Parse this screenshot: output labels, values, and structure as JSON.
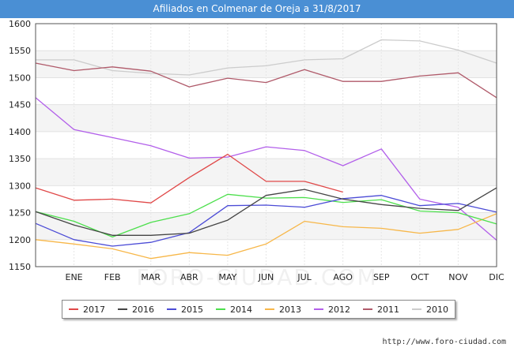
{
  "chart_data": {
    "type": "line",
    "title": "Afiliados en Colmenar de Oreja a 31/8/2017",
    "xlabel": "",
    "ylabel": "",
    "ylim": [
      1150,
      1600
    ],
    "yticks": [
      1150,
      1200,
      1250,
      1300,
      1350,
      1400,
      1450,
      1500,
      1550,
      1600
    ],
    "categories": [
      "",
      "ENE",
      "FEB",
      "MAR",
      "ABR",
      "MAY",
      "JUN",
      "JUL",
      "AGO",
      "SEP",
      "OCT",
      "NOV",
      "DIC"
    ],
    "series": [
      {
        "name": "2010",
        "color": "#cccccc",
        "values": [
          1533,
          1533,
          1513,
          1508,
          1505,
          1518,
          1522,
          1533,
          1535,
          1570,
          1568,
          1551,
          1527
        ]
      },
      {
        "name": "2011",
        "color": "#b05a6a",
        "values": [
          1527,
          1513,
          1520,
          1512,
          1483,
          1499,
          1491,
          1515,
          1493,
          1493,
          1503,
          1509,
          1463
        ]
      },
      {
        "name": "2012",
        "color": "#b25fea",
        "values": [
          1463,
          1404,
          1389,
          1374,
          1351,
          1353,
          1372,
          1365,
          1337,
          1368,
          1275,
          1260,
          1199
        ]
      },
      {
        "name": "2013",
        "color": "#f7b749",
        "values": [
          1200,
          1192,
          1183,
          1165,
          1176,
          1171,
          1192,
          1234,
          1224,
          1221,
          1212,
          1219,
          1248
        ]
      },
      {
        "name": "2014",
        "color": "#4cdf4c",
        "values": [
          1252,
          1234,
          1205,
          1232,
          1248,
          1284,
          1277,
          1278,
          1269,
          1274,
          1253,
          1250,
          1229
        ]
      },
      {
        "name": "2015",
        "color": "#4b4bd6",
        "values": [
          1230,
          1200,
          1188,
          1195,
          1213,
          1263,
          1264,
          1260,
          1276,
          1282,
          1263,
          1267,
          1251
        ]
      },
      {
        "name": "2016",
        "color": "#444444",
        "values": [
          1252,
          1227,
          1208,
          1208,
          1212,
          1236,
          1282,
          1293,
          1275,
          1265,
          1258,
          1254,
          1296
        ]
      },
      {
        "name": "2017",
        "color": "#e04848",
        "values": [
          1296,
          1273,
          1275,
          1268,
          1315,
          1358,
          1308,
          1308,
          1288,
          null,
          null,
          null,
          null
        ]
      }
    ],
    "legend": [
      "2017",
      "2016",
      "2015",
      "2014",
      "2013",
      "2012",
      "2011",
      "2010"
    ],
    "legend_position": "bottom",
    "grid": true
  },
  "source_text": "http://www.foro-ciudad.com",
  "watermark_text": "FORO-CIUDAD.COM"
}
